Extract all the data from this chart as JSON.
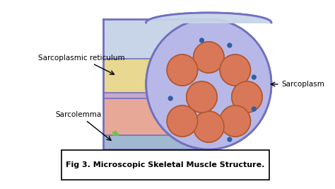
{
  "title": "Fig 3. Microscopic Skeletal Muscle Structure.",
  "labels": {
    "sarcoplasmic_reticulum": "Sarcoplasmic reticulum",
    "sarcolemma": "Sarcolemma",
    "sarcoplasm": "Sarcoplasm"
  },
  "colors": {
    "background": "#ffffff",
    "outer_ellipse_fill": "#b8b8e8",
    "outer_ellipse_edge": "#7070c0",
    "top_cap_fill": "#c8d4e8",
    "top_cap_edge": "#7070c0",
    "yellow_layer": "#e8d890",
    "pink_layer": "#e8a898",
    "blue_bottom": "#a0b8d0",
    "purple_stripe": "#c8a8d0",
    "myofibril_fill": "#d87858",
    "myofibril_edge": "#b05830",
    "dot_color": "#3060a0",
    "arrow_color": "#000000",
    "label_color": "#000000",
    "caption_box_edge": "#000000",
    "green_accent": "#70c050"
  },
  "figsize": [
    4.74,
    2.67
  ],
  "dpi": 100
}
